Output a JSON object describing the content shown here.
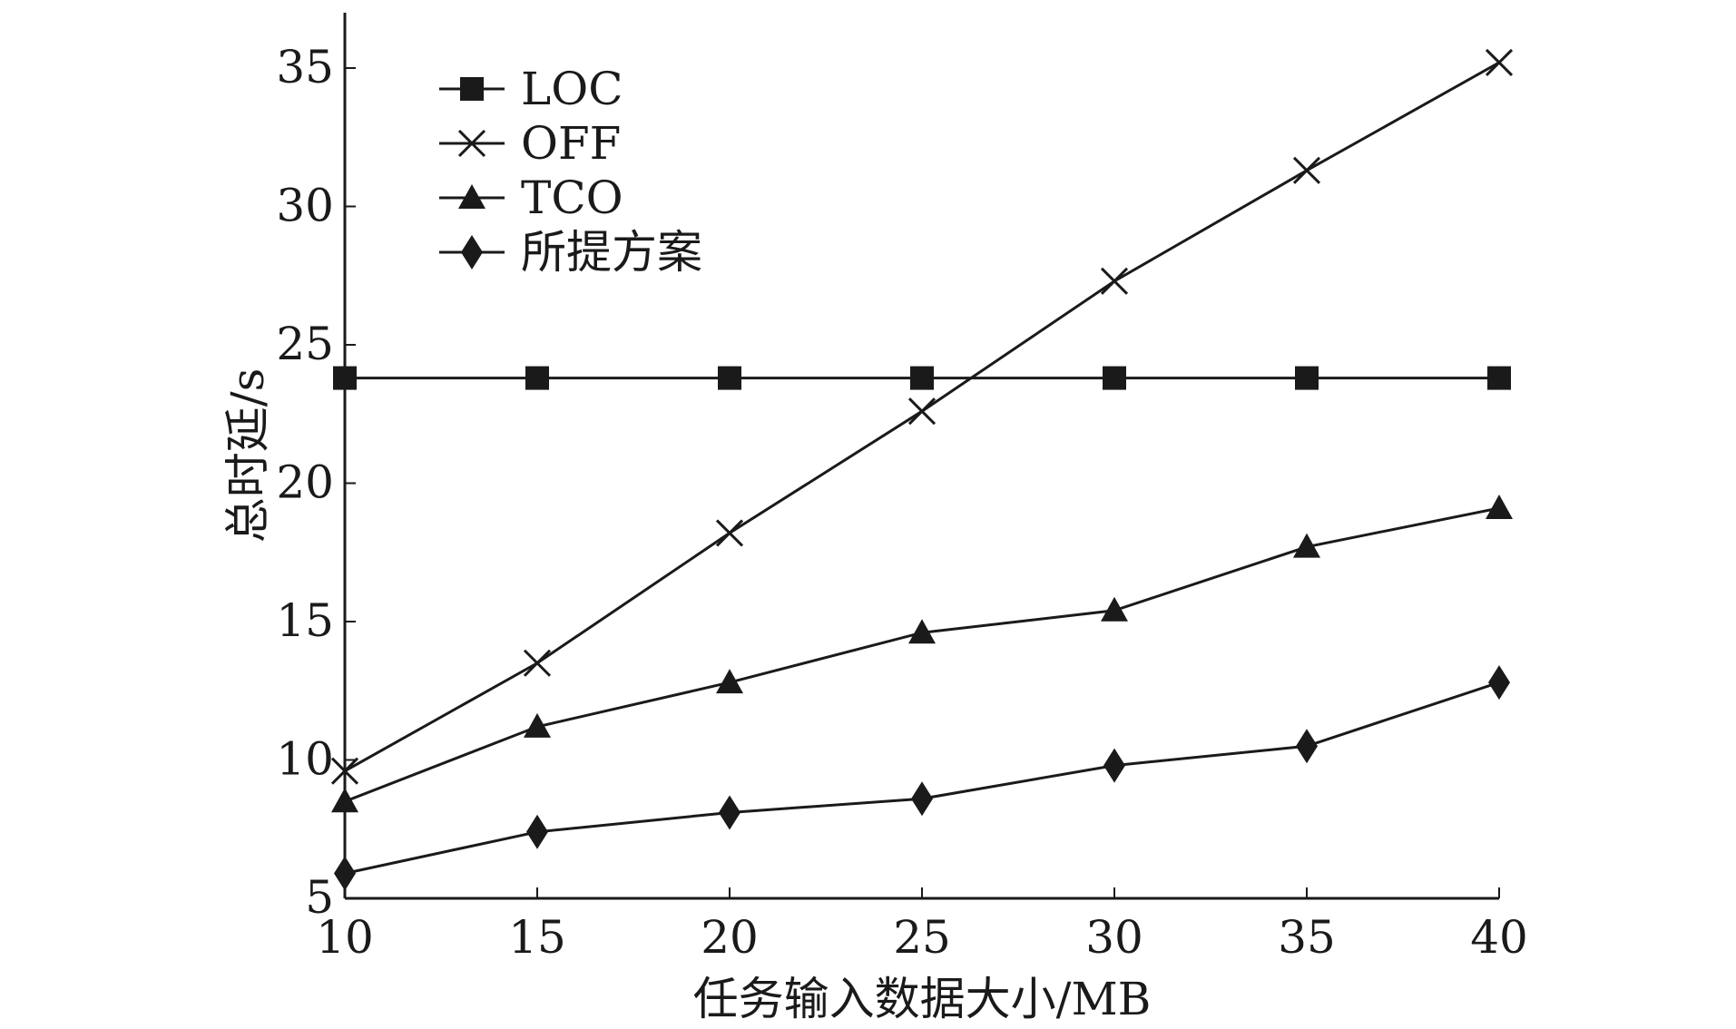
{
  "chart_data": {
    "type": "line",
    "title": "",
    "xlabel": "任务输入数据大小/MB",
    "ylabel": "总时延/s",
    "x": [
      10,
      15,
      20,
      25,
      30,
      35,
      40
    ],
    "xlim": [
      10,
      40
    ],
    "ylim": [
      5,
      37
    ],
    "xticks": [
      "10",
      "15",
      "20",
      "25",
      "30",
      "35",
      "40"
    ],
    "yticks": [
      "5",
      "10",
      "15",
      "20",
      "25",
      "30",
      "35"
    ],
    "grid": false,
    "legend_position": "top-left",
    "series": [
      {
        "name": "LOC",
        "marker": "square",
        "color": "#1a1a1a",
        "values": [
          23.8,
          23.8,
          23.8,
          23.8,
          23.8,
          23.8,
          23.8
        ]
      },
      {
        "name": "OFF",
        "marker": "x",
        "color": "#1a1a1a",
        "values": [
          9.6,
          13.5,
          18.2,
          22.6,
          27.3,
          31.3,
          35.2
        ]
      },
      {
        "name": "TCO",
        "marker": "triangle",
        "color": "#1a1a1a",
        "values": [
          8.5,
          11.2,
          12.8,
          14.6,
          15.4,
          17.7,
          19.1
        ]
      },
      {
        "name": "所提方案",
        "marker": "diamond",
        "color": "#1a1a1a",
        "values": [
          5.9,
          7.4,
          8.1,
          8.6,
          9.8,
          10.5,
          12.8
        ]
      }
    ]
  }
}
